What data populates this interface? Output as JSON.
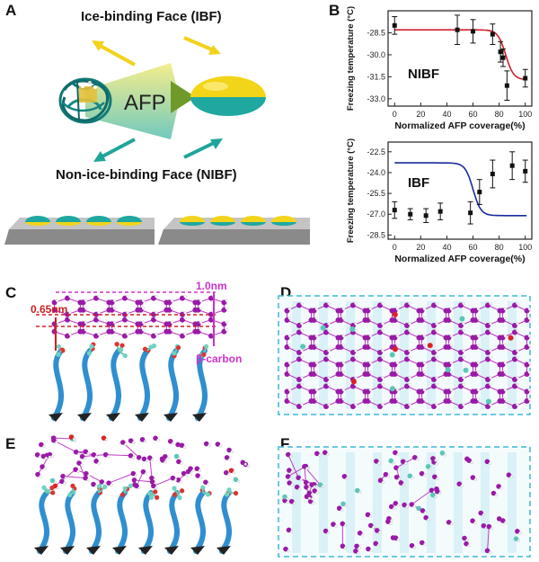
{
  "panels": {
    "A": {
      "letter": "A",
      "ibf_label": "Ice-binding Face (IBF)",
      "nibf_label": "Non-ice-binding Face (NIBF)",
      "afp_label": "AFP",
      "colors": {
        "ibf": "#e8c81a",
        "nibf": "#22a6a0",
        "arrow_yellow": "#f2d21c",
        "arrow_teal": "#1fa59a",
        "afp_arrow": "#6f9a2a",
        "substrate": "#8a8a8a"
      }
    },
    "B": {
      "letter": "B"
    },
    "C": {
      "letter": "C",
      "label_065": "0.65nm",
      "label_10": "1.0nm",
      "label_beta": "β-carbon"
    },
    "D": {
      "letter": "D"
    },
    "E": {
      "letter": "E"
    },
    "F": {
      "letter": "F"
    }
  },
  "chart_data": [
    {
      "type": "scatter",
      "panel_label": "NIBF",
      "xlabel": "Normalized AFP coverage(%)",
      "ylabel": "Freezing temperature (°C)",
      "xlim": [
        -5,
        105
      ],
      "ylim": [
        -33.5,
        -27.0
      ],
      "xticks": [
        "0",
        "20",
        "40",
        "60",
        "80",
        "100"
      ],
      "yticks": [
        "-28.5",
        "-30.0",
        "-31.5",
        "-33.0"
      ],
      "x": [
        0,
        48,
        60,
        75,
        81,
        83,
        86,
        100
      ],
      "y": [
        -28.0,
        -28.3,
        -28.4,
        -28.6,
        -29.8,
        -30.2,
        -32.1,
        -31.6
      ],
      "err": [
        0.6,
        1.0,
        0.8,
        0.7,
        0.7,
        0.6,
        1.0,
        0.6
      ],
      "fit_color": "#d0202a",
      "fit": {
        "top": -28.3,
        "bottom": -31.7,
        "x0": 85,
        "k": 3
      }
    },
    {
      "type": "scatter",
      "panel_label": "IBF",
      "xlabel": "Normalized AFP coverage(%)",
      "ylabel": "Freezing temperature (°C)",
      "xlim": [
        -5,
        105
      ],
      "ylim": [
        -28.8,
        -21.8
      ],
      "xticks": [
        "0",
        "20",
        "40",
        "60",
        "80",
        "100"
      ],
      "yticks": [
        "-22.5",
        "-24.0",
        "-25.5",
        "-27.0",
        "-28.5"
      ],
      "x": [
        0,
        12,
        24,
        35,
        58,
        65,
        75,
        90,
        100
      ],
      "y": [
        -26.7,
        -27.0,
        -27.1,
        -26.8,
        -26.9,
        -25.4,
        -24.1,
        -23.5,
        -23.9
      ],
      "err": [
        0.6,
        0.4,
        0.5,
        0.6,
        0.8,
        0.9,
        1.0,
        1.0,
        0.8
      ],
      "fit_color": "#1a2aa0",
      "fit": {
        "top": -23.3,
        "bottom": -27.1,
        "x0": 60,
        "k": 3
      }
    }
  ]
}
